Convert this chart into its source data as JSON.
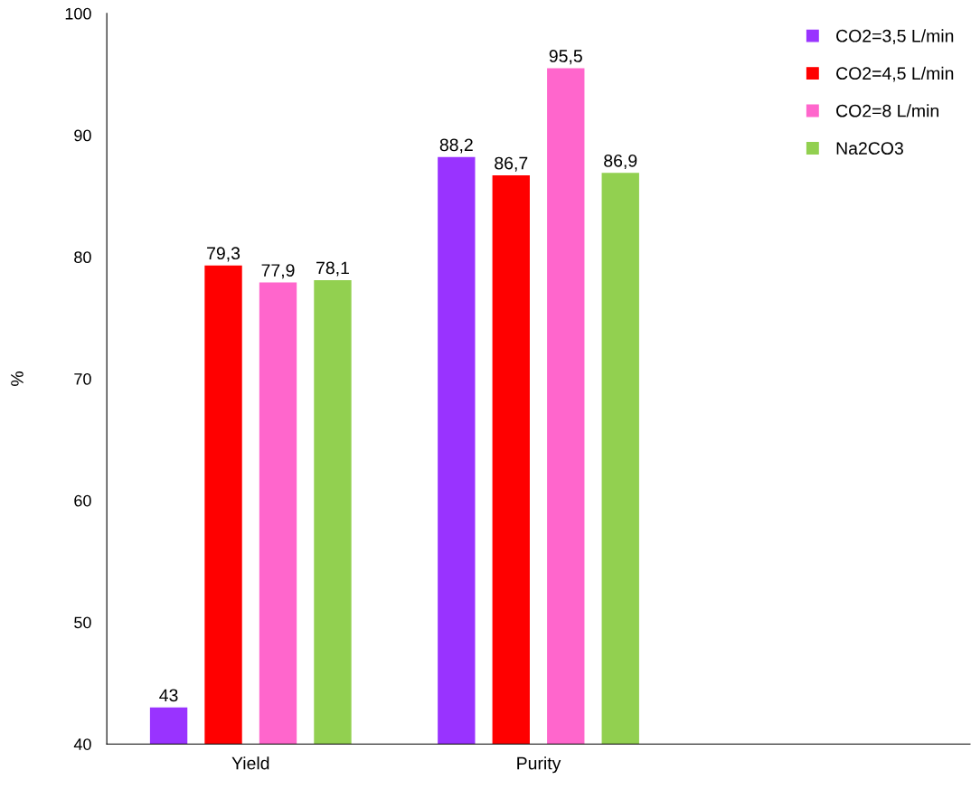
{
  "chart_data": {
    "type": "bar",
    "ylabel": "%",
    "categories": [
      "Yield",
      "Purity",
      null
    ],
    "series": [
      {
        "name": "CO2=3,5 L/min",
        "color": "#9933ff",
        "values": [
          43,
          88.2,
          null
        ],
        "value_labels": [
          "43",
          "88,2",
          null
        ]
      },
      {
        "name": "CO2=4,5 L/min",
        "color": "#ff0000",
        "values": [
          79.3,
          86.7,
          null
        ],
        "value_labels": [
          "79,3",
          "86,7",
          null
        ]
      },
      {
        "name": "CO2=8 L/min",
        "color": "#ff66cc",
        "values": [
          77.9,
          95.5,
          null
        ],
        "value_labels": [
          "77,9",
          "95,5",
          null
        ]
      },
      {
        "name": "Na2CO3",
        "color": "#92d050",
        "values": [
          78.1,
          86.9,
          null
        ],
        "value_labels": [
          "78,1",
          "86,9",
          null
        ]
      }
    ],
    "ylim": [
      40,
      100
    ],
    "yticks": [
      40,
      50,
      60,
      70,
      80,
      90,
      100
    ],
    "grid": false,
    "legend": "top right"
  }
}
